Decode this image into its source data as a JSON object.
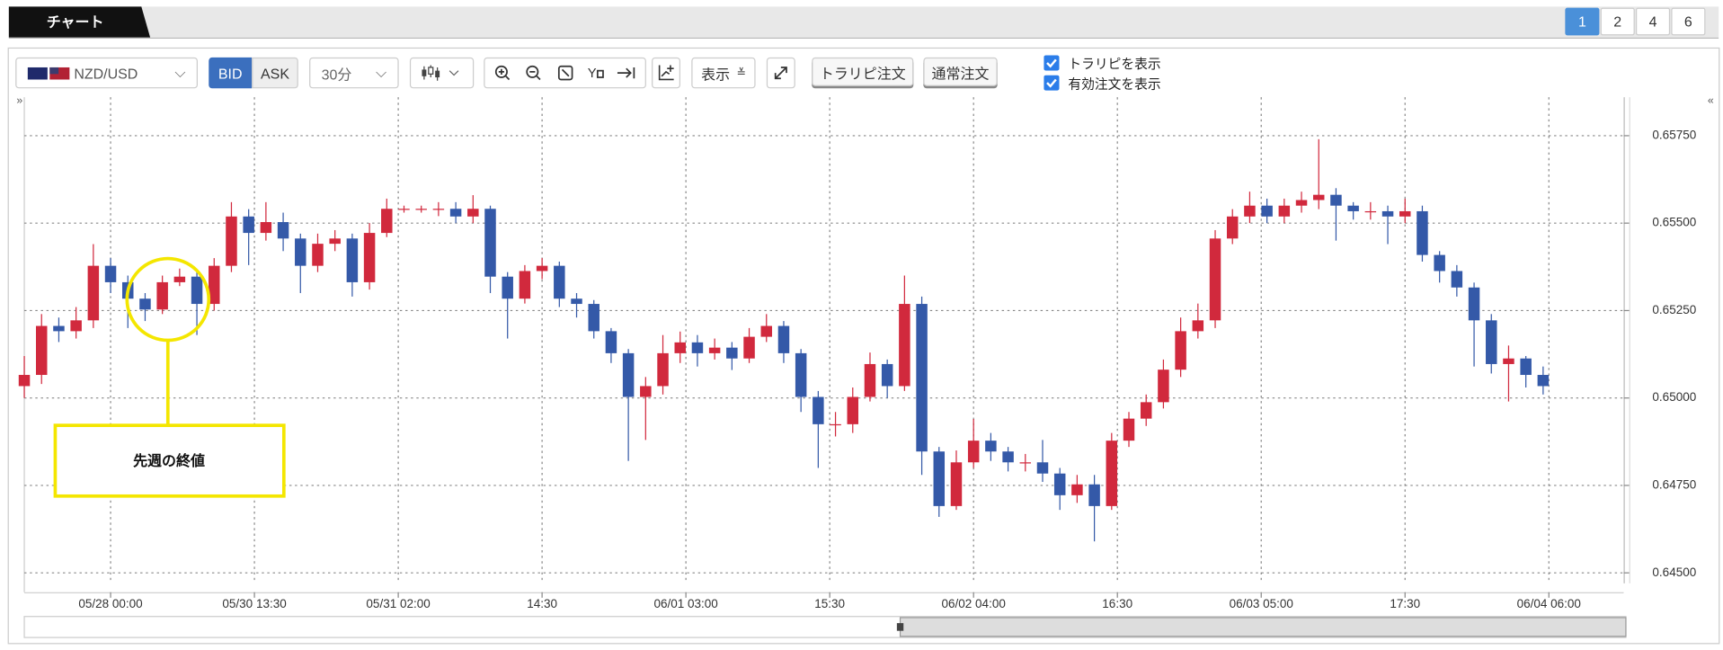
{
  "tabs": {
    "title": "チャート",
    "pages": [
      "1",
      "2",
      "4",
      "6"
    ]
  },
  "toolbar": {
    "symbol": "NZD/USD",
    "bid": "BID",
    "ask": "ASK",
    "interval": "30分",
    "display": "表示",
    "buttons": [
      "トラリピ注文",
      "通常注文"
    ],
    "checkboxes": [
      "トラリピを表示",
      "有効注文を表示"
    ]
  },
  "chart_data": {
    "type": "candlestick",
    "annotation": "先週の終値",
    "up_color": "#d1293d",
    "down_color": "#3459a8",
    "grid": true,
    "x": [
      0,
      3,
      6,
      9,
      12,
      15,
      18,
      21,
      24,
      27,
      30,
      33,
      36,
      39,
      42,
      45,
      48,
      51,
      54,
      57,
      60,
      63,
      66,
      69,
      72,
      75,
      78,
      81,
      84,
      87,
      90,
      93,
      96,
      99,
      102,
      105,
      108,
      111,
      114,
      117,
      120,
      123,
      126,
      129,
      132,
      135,
      138,
      141,
      144,
      147,
      150,
      153,
      156,
      159,
      162,
      165,
      168,
      171,
      174,
      177,
      180,
      183,
      186,
      189,
      192,
      195,
      198,
      201,
      204,
      207,
      210,
      213,
      216,
      219,
      222,
      225,
      228,
      231,
      234,
      237,
      240,
      243,
      246,
      249,
      252,
      255,
      258,
      261,
      264
    ],
    "open": [
      0.65034,
      0.65066,
      0.65206,
      0.65191,
      0.65222,
      0.65378,
      0.65331,
      0.65284,
      0.65253,
      0.65331,
      0.65347,
      0.65269,
      0.65378,
      0.65519,
      0.65472,
      0.65503,
      0.65456,
      0.65378,
      0.65441,
      0.65456,
      0.65331,
      0.65472,
      0.65541,
      0.65541,
      0.65541,
      0.65541,
      0.65519,
      0.65541,
      0.65347,
      0.65284,
      0.65363,
      0.65378,
      0.65284,
      0.65269,
      0.65191,
      0.65128,
      0.65003,
      0.65034,
      0.65128,
      0.65159,
      0.65128,
      0.65144,
      0.65113,
      0.65175,
      0.65206,
      0.65128,
      0.65003,
      0.64925,
      0.64925,
      0.65003,
      0.65097,
      0.65034,
      0.65269,
      0.64847,
      0.64691,
      0.64816,
      0.64878,
      0.64847,
      0.64816,
      0.64816,
      0.64784,
      0.64722,
      0.64753,
      0.64691,
      0.64878,
      0.64941,
      0.64988,
      0.65081,
      0.65191,
      0.65222,
      0.65456,
      0.65519,
      0.6555,
      0.65519,
      0.6555,
      0.65566,
      0.65581,
      0.6555,
      0.65534,
      0.65534,
      0.65519,
      0.65534,
      0.65409,
      0.65363,
      0.65316,
      0.65222,
      0.65097,
      0.65113,
      0.65066
    ],
    "high": [
      0.6512,
      0.6524,
      0.6523,
      0.6526,
      0.6544,
      0.654,
      0.6535,
      0.653,
      0.6535,
      0.6537,
      0.6536,
      0.654,
      0.6556,
      0.6554,
      0.6556,
      0.6553,
      0.6547,
      0.6547,
      0.6548,
      0.6547,
      0.655,
      0.6557,
      0.6555,
      0.6555,
      0.6556,
      0.6556,
      0.6558,
      0.6555,
      0.6536,
      0.6538,
      0.654,
      0.6539,
      0.653,
      0.6528,
      0.652,
      0.6514,
      0.6506,
      0.6518,
      0.6519,
      0.6518,
      0.6517,
      0.6516,
      0.652,
      0.6524,
      0.6522,
      0.6514,
      0.6502,
      0.6496,
      0.6503,
      0.6513,
      0.6511,
      0.6535,
      0.6529,
      0.6486,
      0.6485,
      0.6494,
      0.649,
      0.6486,
      0.6484,
      0.6488,
      0.648,
      0.6478,
      0.6478,
      0.649,
      0.6496,
      0.6501,
      0.6511,
      0.6523,
      0.6527,
      0.6548,
      0.6554,
      0.6559,
      0.6557,
      0.6557,
      0.6559,
      0.6574,
      0.656,
      0.6556,
      0.6556,
      0.6555,
      0.6557,
      0.6555,
      0.6542,
      0.6538,
      0.6533,
      0.6524,
      0.6515,
      0.6512,
      0.6509
    ],
    "low": [
      0.65,
      0.6504,
      0.6516,
      0.6517,
      0.652,
      0.653,
      0.652,
      0.6522,
      0.6524,
      0.6532,
      0.6518,
      0.6525,
      0.6536,
      0.6538,
      0.6545,
      0.6542,
      0.653,
      0.6536,
      0.6542,
      0.6529,
      0.6531,
      0.6546,
      0.6553,
      0.6553,
      0.6552,
      0.655,
      0.655,
      0.653,
      0.6517,
      0.6527,
      0.6534,
      0.6526,
      0.6523,
      0.6517,
      0.651,
      0.6482,
      0.6488,
      0.6501,
      0.651,
      0.6509,
      0.6511,
      0.6508,
      0.651,
      0.6516,
      0.651,
      0.6496,
      0.648,
      0.6489,
      0.649,
      0.6499,
      0.65,
      0.6502,
      0.6478,
      0.6466,
      0.6468,
      0.648,
      0.6482,
      0.6479,
      0.6479,
      0.6476,
      0.6468,
      0.647,
      0.6459,
      0.6468,
      0.6486,
      0.6492,
      0.6497,
      0.6506,
      0.6517,
      0.652,
      0.6544,
      0.655,
      0.655,
      0.655,
      0.6553,
      0.6554,
      0.6545,
      0.6551,
      0.6551,
      0.6544,
      0.655,
      0.6539,
      0.6533,
      0.6529,
      0.6509,
      0.6507,
      0.6499,
      0.6503,
      0.6501
    ],
    "close": [
      0.65066,
      0.65206,
      0.65191,
      0.65222,
      0.65378,
      0.65331,
      0.65284,
      0.65253,
      0.65331,
      0.65347,
      0.65269,
      0.65378,
      0.65519,
      0.65472,
      0.65503,
      0.65456,
      0.65378,
      0.65441,
      0.65456,
      0.65331,
      0.65472,
      0.65541,
      0.65541,
      0.65541,
      0.65541,
      0.65519,
      0.65541,
      0.65347,
      0.65284,
      0.65363,
      0.65378,
      0.65284,
      0.65269,
      0.65191,
      0.65128,
      0.65003,
      0.65034,
      0.65128,
      0.65159,
      0.65128,
      0.65144,
      0.65113,
      0.65175,
      0.65206,
      0.65128,
      0.65003,
      0.64925,
      0.64925,
      0.65003,
      0.65097,
      0.65034,
      0.65269,
      0.64847,
      0.64691,
      0.64816,
      0.64878,
      0.64847,
      0.64816,
      0.64816,
      0.64784,
      0.64722,
      0.64753,
      0.64691,
      0.64878,
      0.64941,
      0.64988,
      0.65081,
      0.65191,
      0.65222,
      0.65456,
      0.65519,
      0.6555,
      0.65519,
      0.6555,
      0.65566,
      0.65581,
      0.6555,
      0.65534,
      0.65534,
      0.65519,
      0.65534,
      0.65409,
      0.65363,
      0.65316,
      0.65222,
      0.65097,
      0.65113,
      0.65066,
      0.65034
    ],
    "xlim": [
      0,
      278
    ],
    "xticks": [
      {
        "value": 15,
        "label": "05/28 00:00"
      },
      {
        "value": 40,
        "label": "05/30 13:30"
      },
      {
        "value": 65,
        "label": "05/31 02:00"
      },
      {
        "value": 90,
        "label": "14:30"
      },
      {
        "value": 115,
        "label": "06/01 03:00"
      },
      {
        "value": 140,
        "label": "15:30"
      },
      {
        "value": 165,
        "label": "06/02 04:00"
      },
      {
        "value": 190,
        "label": "16:30"
      },
      {
        "value": 215,
        "label": "06/03 05:00"
      },
      {
        "value": 240,
        "label": "17:30"
      },
      {
        "value": 265,
        "label": "06/04 06:00"
      }
    ],
    "ylim": [
      0.6447,
      0.6586
    ],
    "yticks": [
      {
        "value": 0.645,
        "label": "0.64500"
      },
      {
        "value": 0.6475,
        "label": "0.64750"
      },
      {
        "value": 0.65,
        "label": "0.65000"
      },
      {
        "value": 0.6525,
        "label": "0.65250"
      },
      {
        "value": 0.655,
        "label": "0.65500"
      },
      {
        "value": 0.6575,
        "label": "0.65750"
      }
    ]
  }
}
